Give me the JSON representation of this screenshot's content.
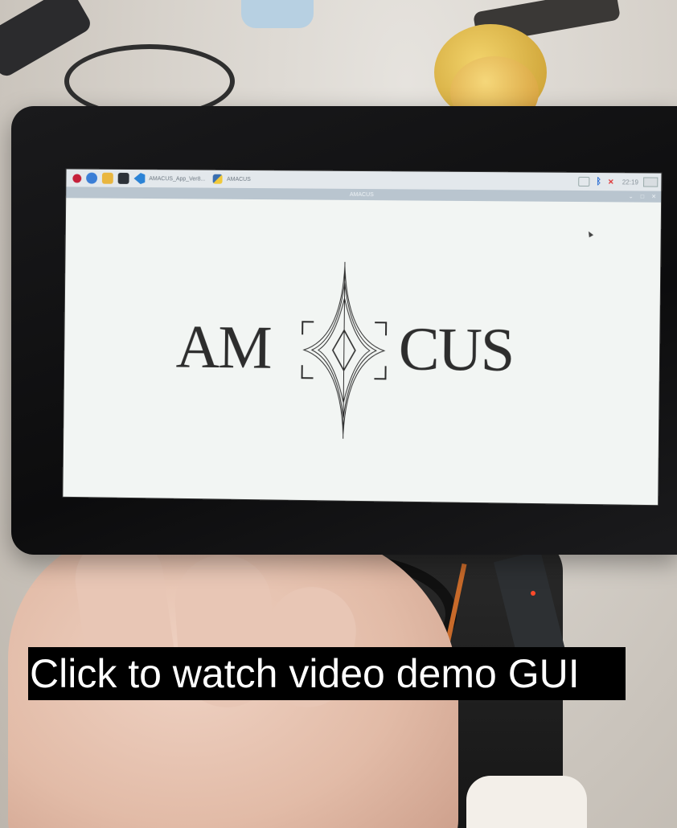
{
  "photo": {
    "background_color": "#cfcac3",
    "bezel_color": "#0c0c0d"
  },
  "taskbar": {
    "task_vscode_label": "AMACUS_App_Ver8...",
    "task_python_label": "AMACUS",
    "clock": "22:19",
    "icons": [
      "raspberry-pi-menu-icon",
      "web-browser-icon",
      "file-manager-icon",
      "terminal-icon",
      "vscode-icon",
      "python-icon",
      "cpu-monitor-icon",
      "bluetooth-icon",
      "network-icon",
      "eject-icon"
    ]
  },
  "window": {
    "title": "AMACUS",
    "controls": [
      "minimize",
      "maximize",
      "close"
    ]
  },
  "app": {
    "logo_left": "AM",
    "logo_right": "CUS",
    "logo_color": "#2d2d2d"
  },
  "caption": {
    "text": "Click to watch video demo GUI"
  }
}
